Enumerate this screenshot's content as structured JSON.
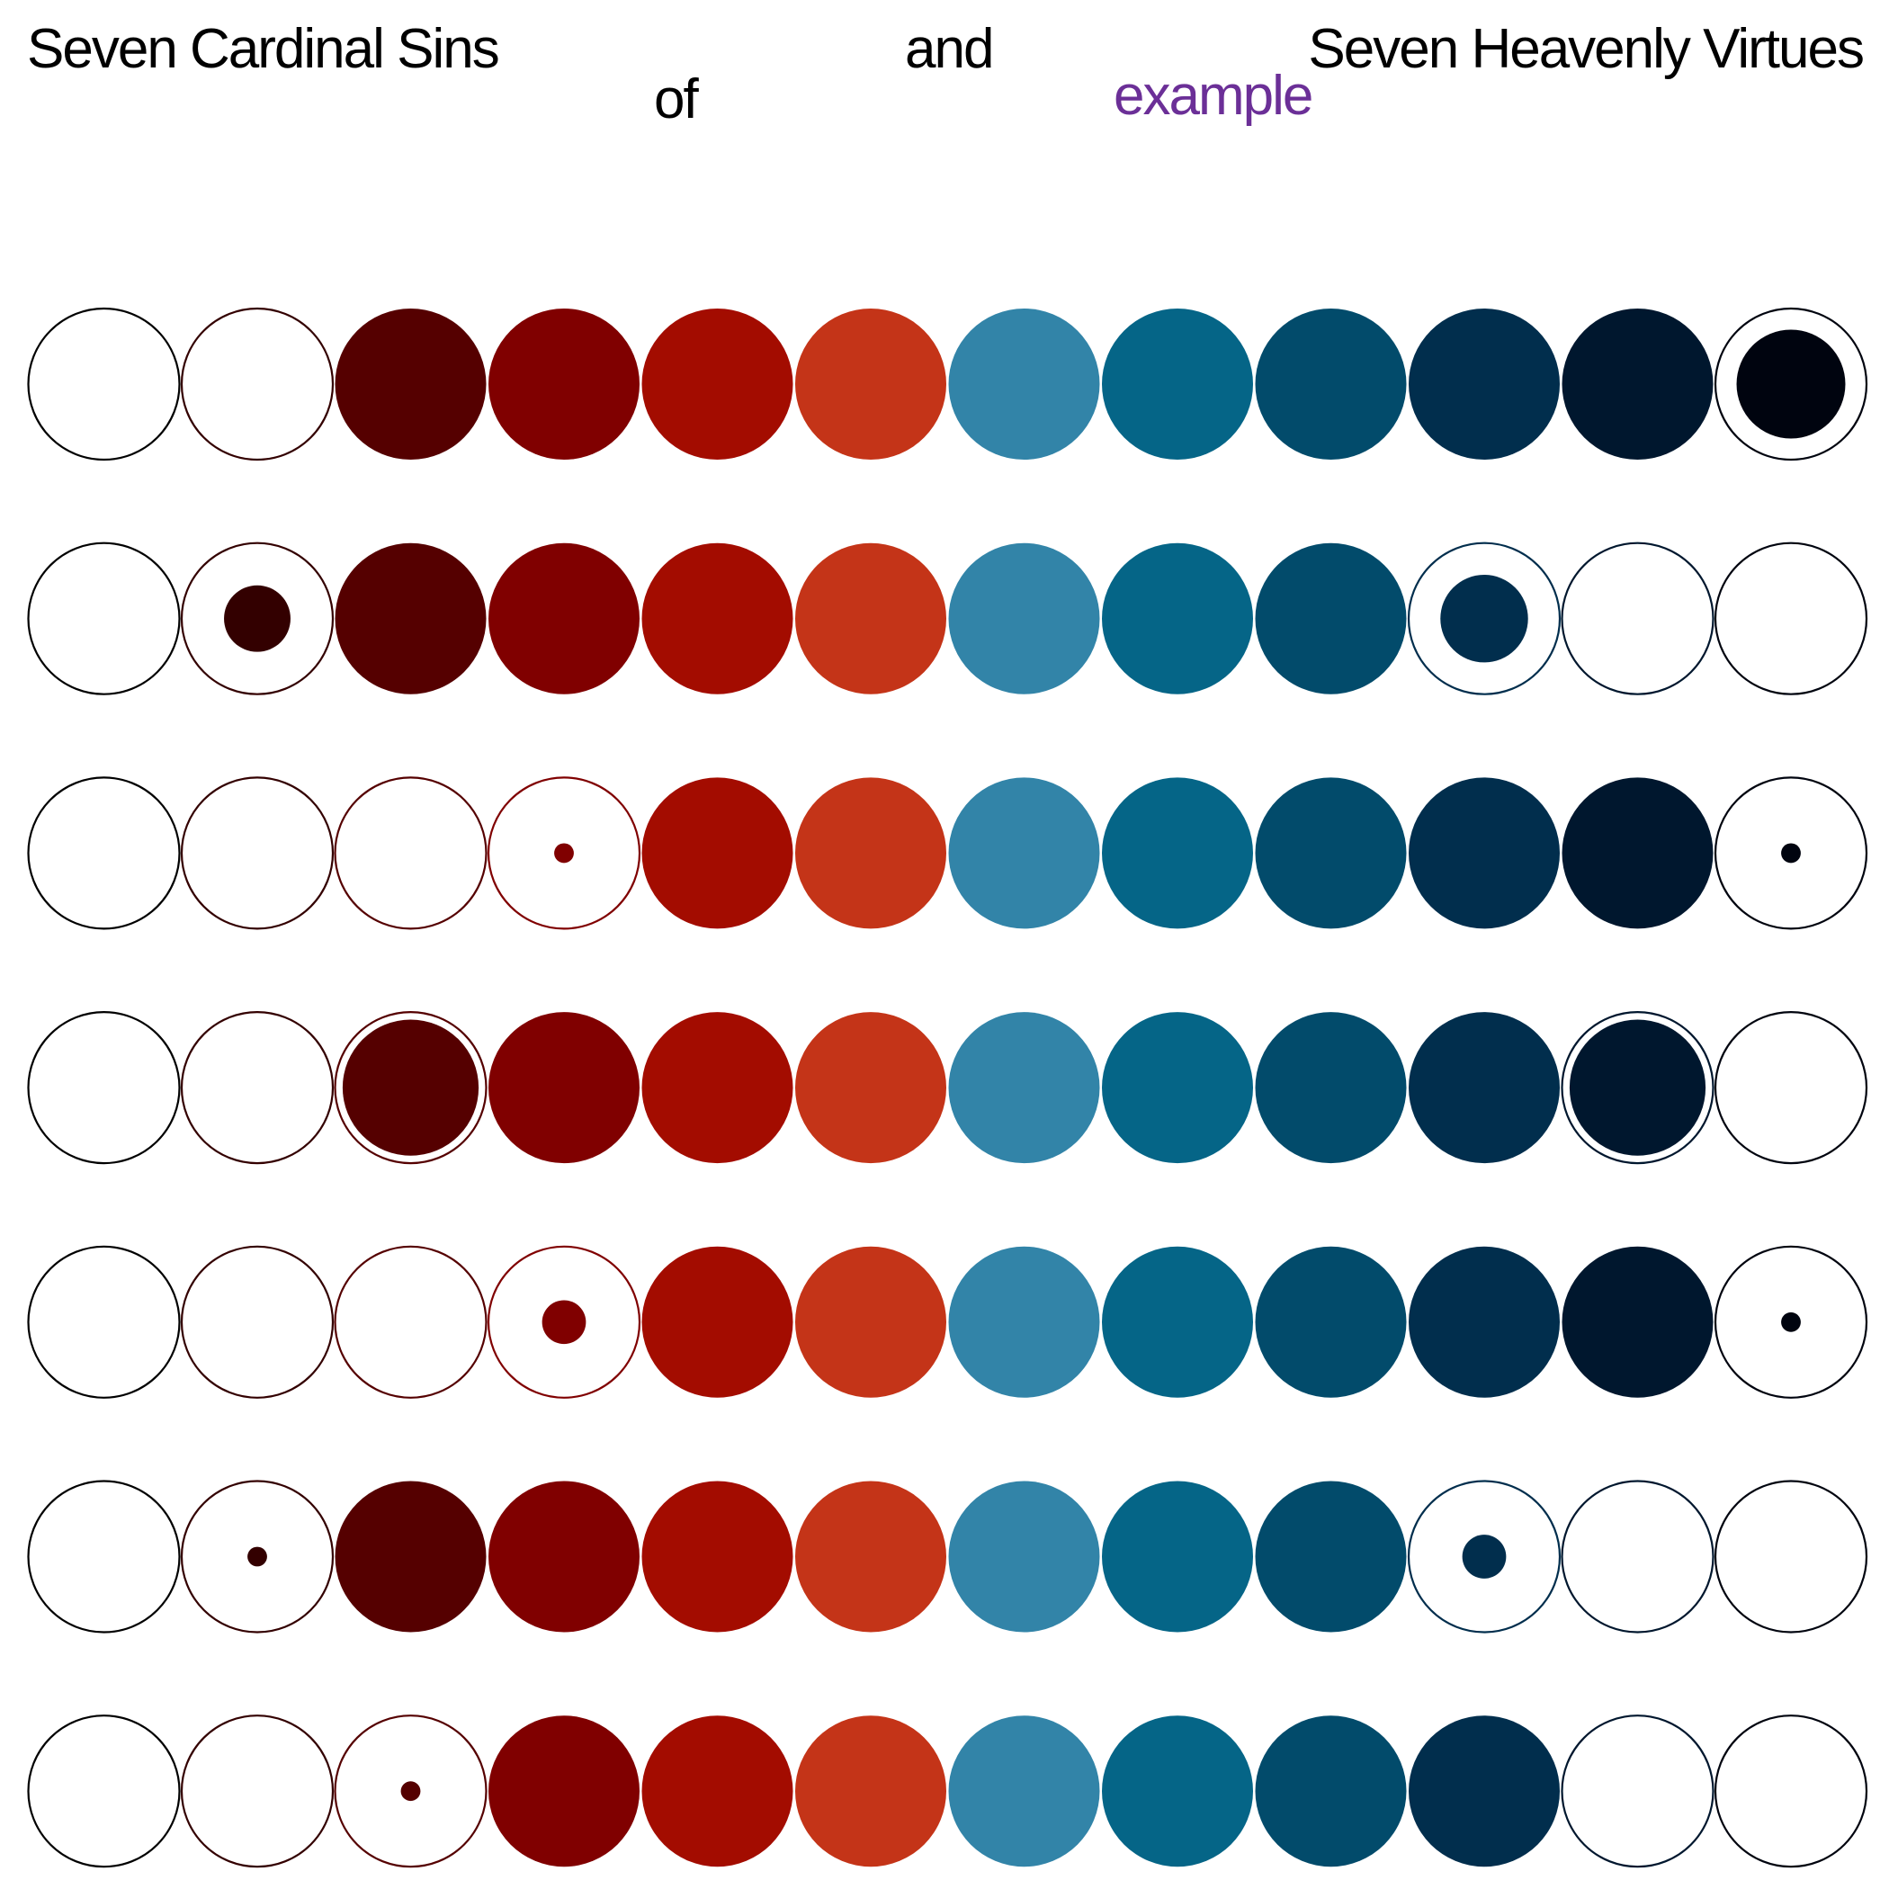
{
  "header": {
    "left": "Seven Cardinal Sins",
    "middle": "and",
    "right": "Seven Heavenly Virtues",
    "of": "of",
    "example": "example",
    "example_color": "#6b2f97"
  },
  "palette": [
    "#550000",
    "#800000",
    "#a30c00",
    "#c43418",
    "#3284a8",
    "#056587",
    "#024b6b",
    "#012e4d",
    "#00172e",
    "#00040f"
  ],
  "columns": [
    {
      "color": "#000000"
    },
    {
      "color": "#330000"
    },
    {
      "color": "#550000"
    },
    {
      "color": "#800000"
    },
    {
      "color": "#a30c00"
    },
    {
      "color": "#c43418"
    },
    {
      "color": "#3284a8"
    },
    {
      "color": "#056587"
    },
    {
      "color": "#024b6b"
    },
    {
      "color": "#012e4d"
    },
    {
      "color": "#00172e"
    },
    {
      "color": "#00040f"
    }
  ],
  "rows": [
    [
      "empty",
      "empty",
      "full",
      "full",
      "full",
      "full",
      "full",
      "full",
      "full",
      "full",
      "full",
      0.72
    ],
    [
      "empty",
      0.44,
      "full",
      "full",
      "full",
      "full",
      "full",
      "full",
      "full",
      0.58,
      "empty",
      "empty"
    ],
    [
      "empty",
      "empty",
      "empty",
      0.13,
      "full",
      "full",
      "full",
      "full",
      "full",
      "full",
      "full",
      0.13
    ],
    [
      "empty",
      "empty",
      0.9,
      "full",
      "full",
      "full",
      "full",
      "full",
      "full",
      "full",
      0.9,
      "empty"
    ],
    [
      "empty",
      "empty",
      "empty",
      0.29,
      "full",
      "full",
      "full",
      "full",
      "full",
      "full",
      "full",
      0.13
    ],
    [
      "empty",
      0.13,
      "full",
      "full",
      "full",
      "full",
      "full",
      "full",
      "full",
      0.29,
      "empty",
      "empty"
    ],
    [
      "empty",
      "empty",
      0.13,
      "full",
      "full",
      "full",
      "full",
      "full",
      "full",
      "full",
      "empty",
      "empty"
    ]
  ]
}
